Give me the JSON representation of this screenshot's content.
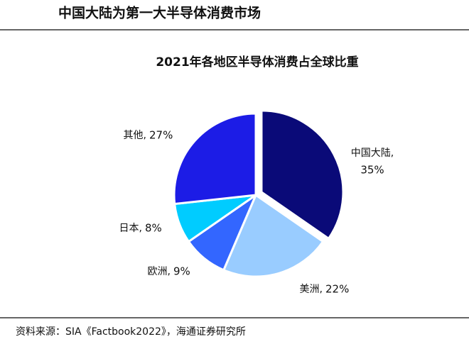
{
  "header": {
    "title": "中国大陆为第一大半导体消费市场"
  },
  "chart_data": {
    "type": "pie",
    "title": "2021年各地区半导体消费占全球比重",
    "categories": [
      "中国大陆,",
      "美洲,",
      "欧洲,",
      "日本,",
      "其他,"
    ],
    "values": [
      35,
      22,
      9,
      8,
      27
    ],
    "value_labels": [
      "35%",
      "22%",
      "9%",
      "8%",
      "27%"
    ],
    "colors": [
      "#0a0a78",
      "#99ccff",
      "#3366ff",
      "#00ccff",
      "#1c1ce6"
    ]
  },
  "source": "资料来源：SIA《Factbook2022》，海通证券研究所"
}
